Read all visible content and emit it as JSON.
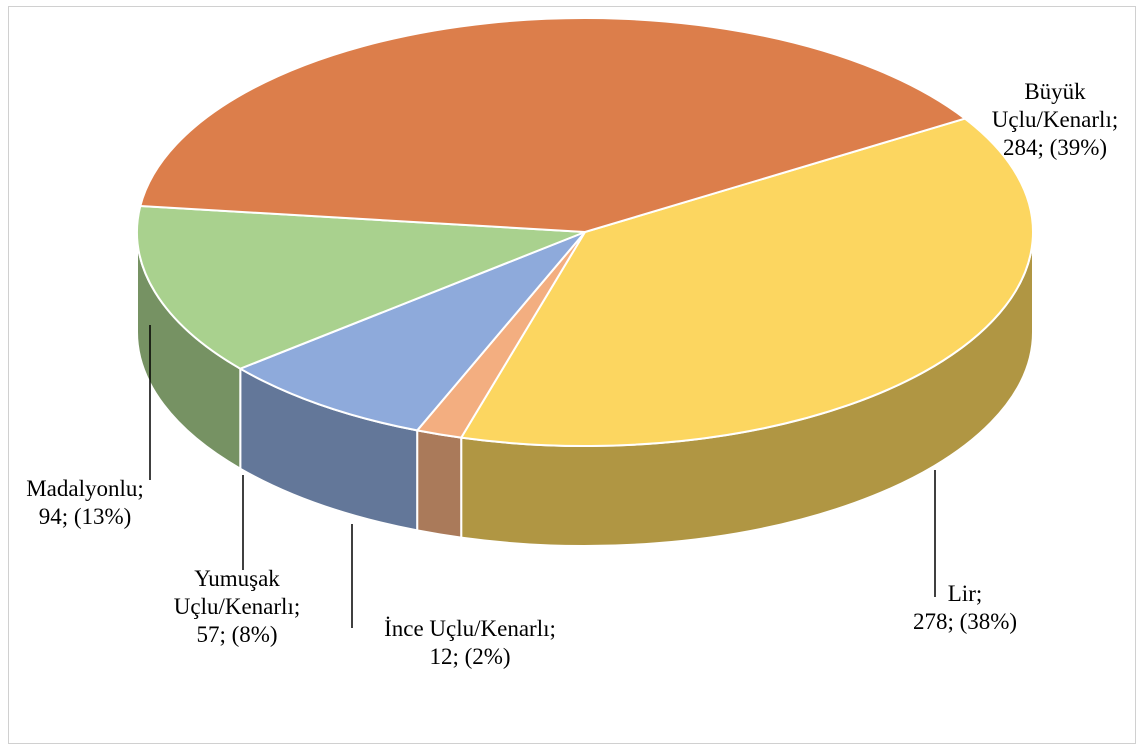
{
  "chart_data": {
    "type": "pie3d",
    "categories": [
      "Lir;",
      "İnce Uçlu/Kenarlı;",
      "Yumuşak Uçlu/Kenarlı;",
      "Madalyonlu;",
      "Büyük Uçlu/Kenarlı;"
    ],
    "values": [
      278,
      12,
      57,
      94,
      284
    ],
    "value_labels": [
      "278; (38%)",
      "12; (2%)",
      "57; (8%)",
      "94; (13%)",
      "284; (39%)"
    ],
    "colors": [
      "#fcd660",
      "#f3ae80",
      "#8eaadb",
      "#a9d18e",
      "#dc7e4b"
    ]
  }
}
